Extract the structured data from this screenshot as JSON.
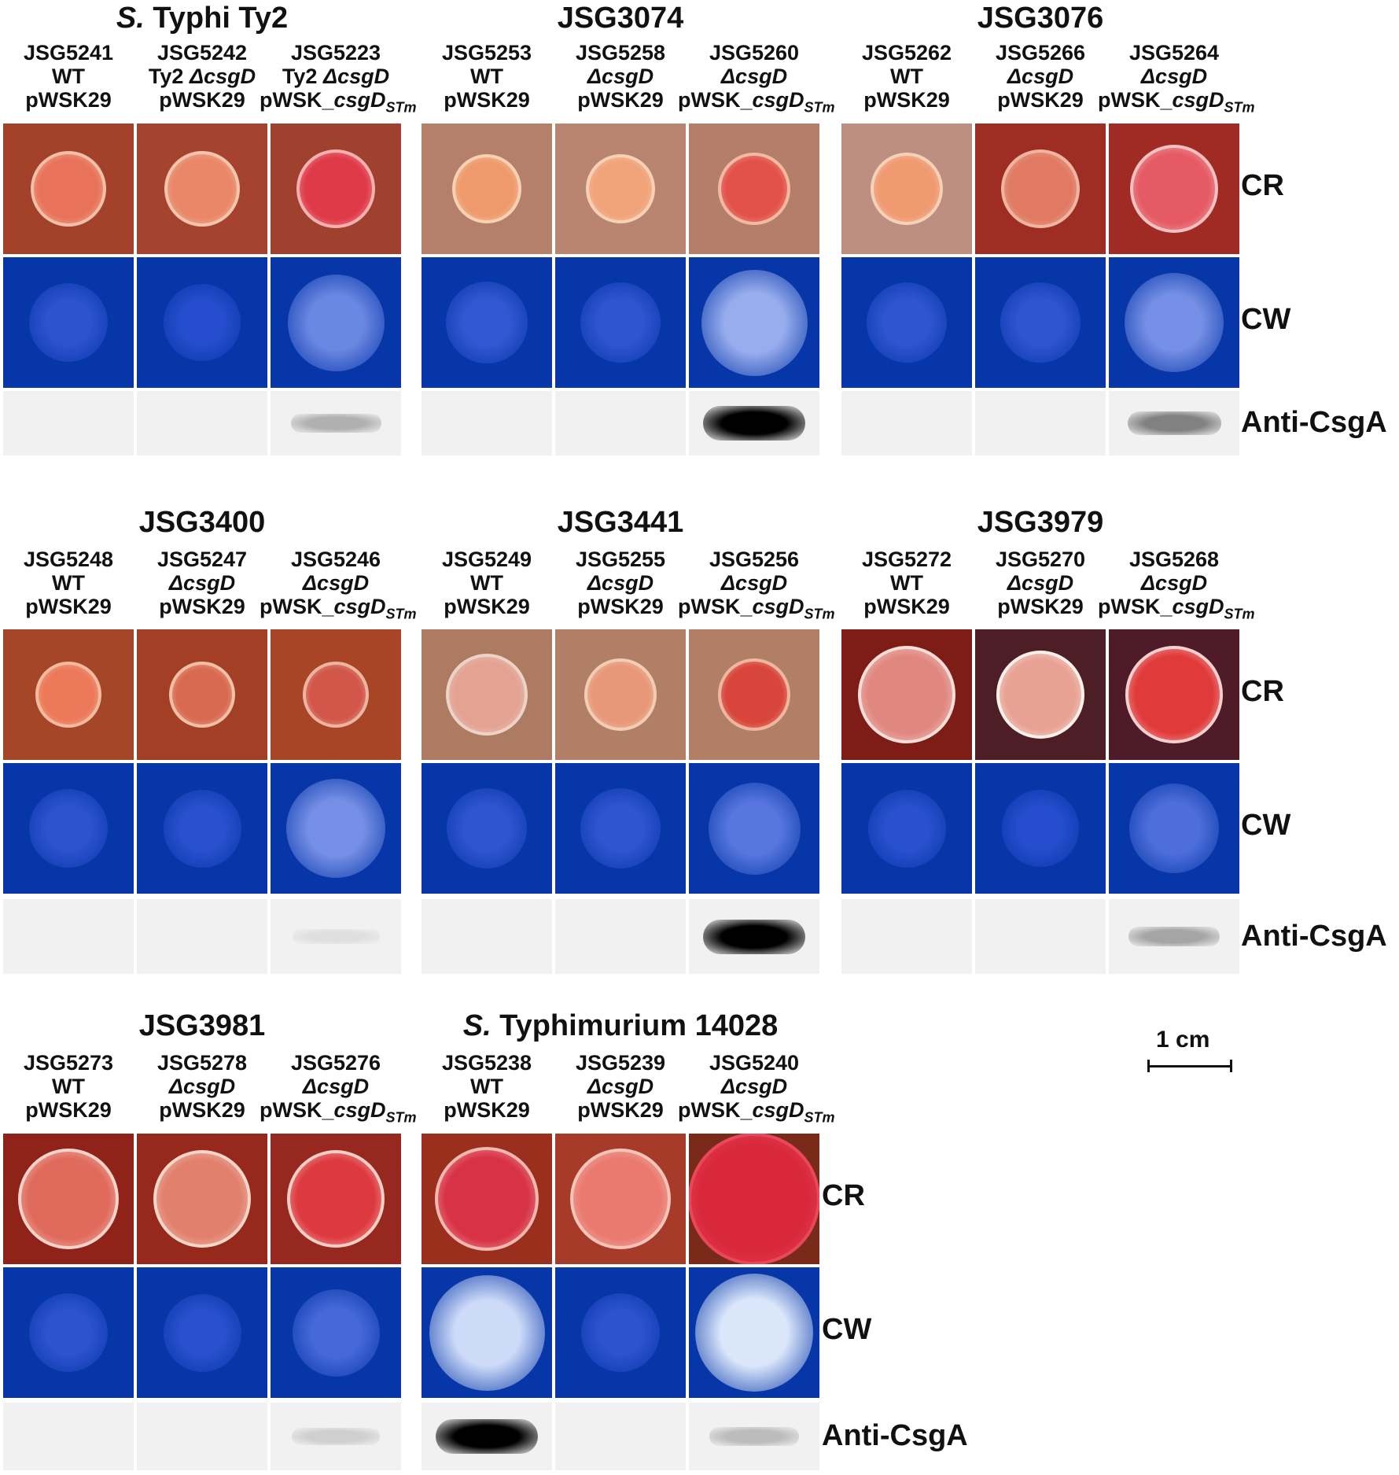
{
  "row_labels": {
    "cr": "CR",
    "cw": "CW",
    "wb": "Anti-CsgA"
  },
  "scale_bar": {
    "label": "1 cm"
  },
  "panels": [
    {
      "title_italic": "S.",
      "title": " Typhi Ty2",
      "strains": [
        {
          "id": "JSG5241",
          "l2": "WT",
          "l2_italic": "",
          "l3": "pWSK29",
          "l3_italic": "",
          "l3_sub": ""
        },
        {
          "id": "JSG5242",
          "l2": "Ty2 ",
          "l2_italic": "ΔcsgD",
          "l3": "pWSK29",
          "l3_italic": "",
          "l3_sub": ""
        },
        {
          "id": "JSG5223",
          "l2": "Ty2 ",
          "l2_italic": "ΔcsgD",
          "l3": "pWSK_",
          "l3_italic": "csgD",
          "l3_sub": "STm"
        }
      ]
    },
    {
      "title_italic": "",
      "title": "JSG3074",
      "strains": [
        {
          "id": "JSG5253",
          "l2": "WT",
          "l2_italic": "",
          "l3": "pWSK29",
          "l3_italic": "",
          "l3_sub": ""
        },
        {
          "id": "JSG5258",
          "l2": "",
          "l2_italic": "ΔcsgD",
          "l3": "pWSK29",
          "l3_italic": "",
          "l3_sub": ""
        },
        {
          "id": "JSG5260",
          "l2": "",
          "l2_italic": "ΔcsgD",
          "l3": "pWSK_",
          "l3_italic": "csgD",
          "l3_sub": "STm"
        }
      ]
    },
    {
      "title_italic": "",
      "title": "JSG3076",
      "strains": [
        {
          "id": "JSG5262",
          "l2": "WT",
          "l2_italic": "",
          "l3": "pWSK29",
          "l3_italic": "",
          "l3_sub": ""
        },
        {
          "id": "JSG5266",
          "l2": "",
          "l2_italic": "ΔcsgD",
          "l3": "pWSK29",
          "l3_italic": "",
          "l3_sub": ""
        },
        {
          "id": "JSG5264",
          "l2": "",
          "l2_italic": "ΔcsgD",
          "l3": "pWSK_",
          "l3_italic": "csgD",
          "l3_sub": "STm"
        }
      ]
    },
    {
      "title_italic": "",
      "title": "JSG3400",
      "strains": [
        {
          "id": "JSG5248",
          "l2": "WT",
          "l2_italic": "",
          "l3": "pWSK29",
          "l3_italic": "",
          "l3_sub": ""
        },
        {
          "id": "JSG5247",
          "l2": "",
          "l2_italic": "ΔcsgD",
          "l3": "pWSK29",
          "l3_italic": "",
          "l3_sub": ""
        },
        {
          "id": "JSG5246",
          "l2": "",
          "l2_italic": "ΔcsgD",
          "l3": "pWSK_",
          "l3_italic": "csgD",
          "l3_sub": "STm"
        }
      ]
    },
    {
      "title_italic": "",
      "title": "JSG3441",
      "strains": [
        {
          "id": "JSG5249",
          "l2": "WT",
          "l2_italic": "",
          "l3": "pWSK29",
          "l3_italic": "",
          "l3_sub": ""
        },
        {
          "id": "JSG5255",
          "l2": "",
          "l2_italic": "ΔcsgD",
          "l3": "pWSK29",
          "l3_italic": "",
          "l3_sub": ""
        },
        {
          "id": "JSG5256",
          "l2": "",
          "l2_italic": "ΔcsgD",
          "l3": "pWSK_",
          "l3_italic": "csgD",
          "l3_sub": "STm"
        }
      ]
    },
    {
      "title_italic": "",
      "title": "JSG3979",
      "strains": [
        {
          "id": "JSG5272",
          "l2": "WT",
          "l2_italic": "",
          "l3": "pWSK29",
          "l3_italic": "",
          "l3_sub": ""
        },
        {
          "id": "JSG5270",
          "l2": "",
          "l2_italic": "ΔcsgD",
          "l3": "pWSK29",
          "l3_italic": "",
          "l3_sub": ""
        },
        {
          "id": "JSG5268",
          "l2": "",
          "l2_italic": "ΔcsgD",
          "l3": "pWSK_",
          "l3_italic": "csgD",
          "l3_sub": "STm"
        }
      ]
    },
    {
      "title_italic": "",
      "title": "JSG3981",
      "strains": [
        {
          "id": "JSG5273",
          "l2": "WT",
          "l2_italic": "",
          "l3": "pWSK29",
          "l3_italic": "",
          "l3_sub": ""
        },
        {
          "id": "JSG5278",
          "l2": "",
          "l2_italic": "ΔcsgD",
          "l3": "pWSK29",
          "l3_italic": "",
          "l3_sub": ""
        },
        {
          "id": "JSG5276",
          "l2": "",
          "l2_italic": "ΔcsgD",
          "l3": "pWSK_",
          "l3_italic": "csgD",
          "l3_sub": "STm"
        }
      ]
    },
    {
      "title_italic": "S.",
      "title": " Typhimurium 14028",
      "strains": [
        {
          "id": "JSG5238",
          "l2": "WT",
          "l2_italic": "",
          "l3": "pWSK29",
          "l3_italic": "",
          "l3_sub": ""
        },
        {
          "id": "JSG5239",
          "l2": "",
          "l2_italic": "ΔcsgD",
          "l3": "pWSK29",
          "l3_italic": "",
          "l3_sub": ""
        },
        {
          "id": "JSG5240",
          "l2": "",
          "l2_italic": "ΔcsgD",
          "l3": "pWSK_",
          "l3_italic": "csgD",
          "l3_sub": "STm"
        }
      ]
    }
  ],
  "colors": {
    "cw_plate": "#0636a8",
    "wb_bg": "#f1f1f1"
  }
}
